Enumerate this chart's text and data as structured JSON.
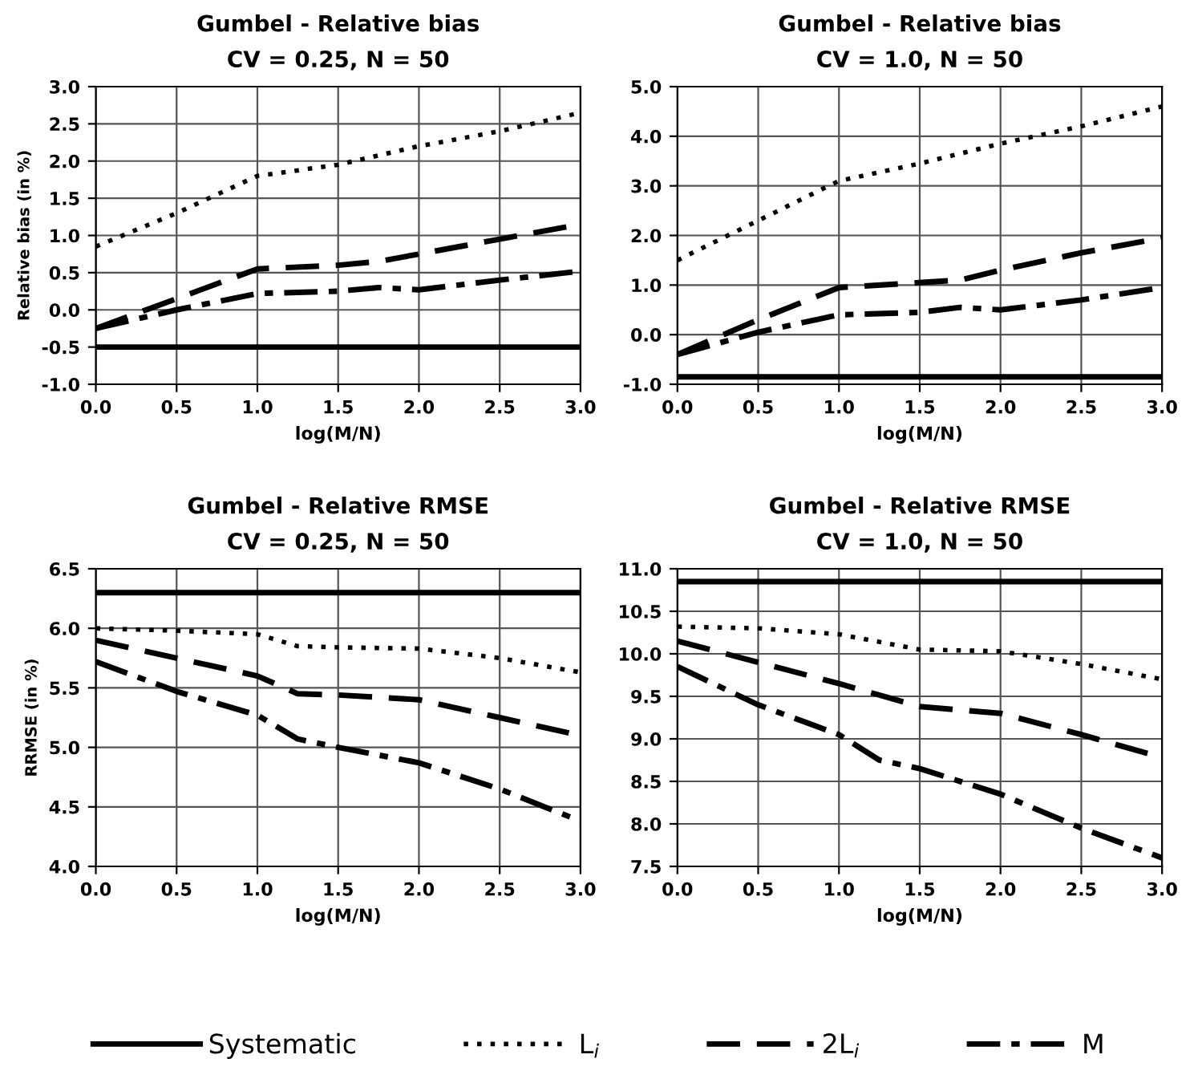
{
  "chart_data": [
    {
      "type": "line",
      "title": "Gumbel - Relative bias",
      "subtitle": "CV = 0.25, N = 50",
      "xlabel": "log(M/N)",
      "ylabel": "Relative bias (in %)",
      "xlim": [
        0,
        3
      ],
      "xticks": [
        {
          "value": 0,
          "label": "0.0"
        },
        {
          "value": 0.5,
          "label": "0.5"
        },
        {
          "value": 1,
          "label": "1.0"
        },
        {
          "value": 1.5,
          "label": "1.5"
        },
        {
          "value": 2,
          "label": "2.0"
        },
        {
          "value": 2.5,
          "label": "2.5"
        },
        {
          "value": 3,
          "label": "3.0"
        }
      ],
      "ylim": [
        -1,
        3
      ],
      "yticks": [
        {
          "value": -1,
          "label": "-1.0"
        },
        {
          "value": -0.5,
          "label": "-0.5"
        },
        {
          "value": 0,
          "label": "0.0"
        },
        {
          "value": 0.5,
          "label": "0.5"
        },
        {
          "value": 1,
          "label": "1.0"
        },
        {
          "value": 1.5,
          "label": "1.5"
        },
        {
          "value": 2,
          "label": "2.0"
        },
        {
          "value": 2.5,
          "label": "2.5"
        },
        {
          "value": 3,
          "label": "3.0"
        }
      ],
      "grid": true,
      "legend": "bottom",
      "marker": "none",
      "series": [
        {
          "name": "Systematic",
          "color": "#000000",
          "line_style": "solid",
          "x": [
            0,
            3
          ],
          "values": [
            -0.5,
            -0.5
          ]
        },
        {
          "name": "L$_{i}$",
          "color": "#000000",
          "line_style": "dotted",
          "x": [
            0,
            0.5,
            1,
            1.5,
            2,
            2.5,
            3
          ],
          "values": [
            0.85,
            1.3,
            1.8,
            1.95,
            2.2,
            2.4,
            2.65
          ]
        },
        {
          "name": "2L$_{i}$",
          "color": "#000000",
          "line_style": "dashed",
          "x": [
            0,
            0.5,
            1,
            1.5,
            1.75,
            2,
            2.5,
            3
          ],
          "values": [
            -0.25,
            0.15,
            0.55,
            0.6,
            0.65,
            0.75,
            0.95,
            1.15
          ]
        },
        {
          "name": "M",
          "color": "#000000",
          "line_style": "dashdot",
          "x": [
            0,
            0.5,
            1,
            1.5,
            1.75,
            2,
            2.5,
            3
          ],
          "values": [
            -0.25,
            0.0,
            0.22,
            0.25,
            0.3,
            0.27,
            0.4,
            0.52
          ]
        }
      ]
    },
    {
      "type": "line",
      "title": "Gumbel - Relative bias",
      "subtitle": "CV = 1.0, N = 50",
      "xlabel": "log(M/N)",
      "xlim": [
        0,
        3
      ],
      "xticks": [
        {
          "value": 0,
          "label": "0.0"
        },
        {
          "value": 0.5,
          "label": "0.5"
        },
        {
          "value": 1,
          "label": "1.0"
        },
        {
          "value": 1.5,
          "label": "1.5"
        },
        {
          "value": 2,
          "label": "2.0"
        },
        {
          "value": 2.5,
          "label": "2.5"
        },
        {
          "value": 3,
          "label": "3.0"
        }
      ],
      "ylim": [
        -1,
        5
      ],
      "yticks": [
        {
          "value": -1,
          "label": "-1.0"
        },
        {
          "value": 0,
          "label": "0.0"
        },
        {
          "value": 1,
          "label": "1.0"
        },
        {
          "value": 2,
          "label": "2.0"
        },
        {
          "value": 3,
          "label": "3.0"
        },
        {
          "value": 4,
          "label": "4.0"
        },
        {
          "value": 5,
          "label": "5.0"
        }
      ],
      "grid": true,
      "marker": "none",
      "series": [
        {
          "color": "#000000",
          "line_style": "solid",
          "x": [
            0,
            3
          ],
          "values": [
            -0.85,
            -0.85
          ]
        },
        {
          "color": "#000000",
          "line_style": "dotted",
          "x": [
            0,
            0.5,
            1,
            1.5,
            2,
            2.5,
            3
          ],
          "values": [
            1.5,
            2.3,
            3.1,
            3.45,
            3.85,
            4.2,
            4.6
          ]
        },
        {
          "color": "#000000",
          "line_style": "dashed",
          "x": [
            0,
            0.5,
            1,
            1.5,
            1.75,
            2,
            2.5,
            3
          ],
          "values": [
            -0.4,
            0.3,
            0.95,
            1.05,
            1.1,
            1.3,
            1.65,
            1.95
          ]
        },
        {
          "color": "#000000",
          "line_style": "dashdot",
          "x": [
            0,
            0.5,
            1,
            1.5,
            1.75,
            2,
            2.5,
            3
          ],
          "values": [
            -0.4,
            0.05,
            0.4,
            0.45,
            0.55,
            0.5,
            0.7,
            0.95
          ]
        }
      ]
    },
    {
      "type": "line",
      "title": "Gumbel - Relative RMSE",
      "subtitle": "CV = 0.25, N = 50",
      "xlabel": "log(M/N)",
      "ylabel": "RRMSE (in %)",
      "xlim": [
        0,
        3
      ],
      "xticks": [
        {
          "value": 0,
          "label": "0.0"
        },
        {
          "value": 0.5,
          "label": "0.5"
        },
        {
          "value": 1,
          "label": "1.0"
        },
        {
          "value": 1.5,
          "label": "1.5"
        },
        {
          "value": 2,
          "label": "2.0"
        },
        {
          "value": 2.5,
          "label": "2.5"
        },
        {
          "value": 3,
          "label": "3.0"
        }
      ],
      "ylim": [
        4,
        6.5
      ],
      "yticks": [
        {
          "value": 4,
          "label": "4.0"
        },
        {
          "value": 4.5,
          "label": "4.5"
        },
        {
          "value": 5,
          "label": "5.0"
        },
        {
          "value": 5.5,
          "label": "5.5"
        },
        {
          "value": 6,
          "label": "6.0"
        },
        {
          "value": 6.5,
          "label": "6.5"
        }
      ],
      "grid": true,
      "marker": "none",
      "series": [
        {
          "color": "#000000",
          "line_style": "solid",
          "x": [
            0,
            3
          ],
          "values": [
            6.3,
            6.3
          ]
        },
        {
          "color": "#000000",
          "line_style": "dotted",
          "x": [
            0,
            0.5,
            1,
            1.25,
            1.5,
            2,
            2.5,
            3
          ],
          "values": [
            6.0,
            5.98,
            5.95,
            5.85,
            5.84,
            5.83,
            5.75,
            5.63
          ]
        },
        {
          "color": "#000000",
          "line_style": "dashed",
          "x": [
            0,
            0.5,
            1,
            1.25,
            1.5,
            2,
            2.5,
            3
          ],
          "values": [
            5.9,
            5.75,
            5.6,
            5.45,
            5.44,
            5.4,
            5.25,
            5.1
          ]
        },
        {
          "color": "#000000",
          "line_style": "dashdot",
          "x": [
            0,
            0.5,
            1,
            1.25,
            1.5,
            2,
            2.5,
            3
          ],
          "values": [
            5.72,
            5.47,
            5.27,
            5.07,
            5.0,
            4.87,
            4.65,
            4.38
          ]
        }
      ]
    },
    {
      "type": "line",
      "title": "Gumbel - Relative RMSE",
      "subtitle": "CV = 1.0, N = 50",
      "xlabel": "log(M/N)",
      "xlim": [
        0,
        3
      ],
      "xticks": [
        {
          "value": 0,
          "label": "0.0"
        },
        {
          "value": 0.5,
          "label": "0.5"
        },
        {
          "value": 1,
          "label": "1.0"
        },
        {
          "value": 1.5,
          "label": "1.5"
        },
        {
          "value": 2,
          "label": "2.0"
        },
        {
          "value": 2.5,
          "label": "2.5"
        },
        {
          "value": 3,
          "label": "3.0"
        }
      ],
      "ylim": [
        7.5,
        11
      ],
      "yticks": [
        {
          "value": 7.5,
          "label": "7.5"
        },
        {
          "value": 8,
          "label": "8.0"
        },
        {
          "value": 8.5,
          "label": "8.5"
        },
        {
          "value": 9,
          "label": "9.0"
        },
        {
          "value": 9.5,
          "label": "9.5"
        },
        {
          "value": 10,
          "label": "10.0"
        },
        {
          "value": 10.5,
          "label": "10.5"
        },
        {
          "value": 11,
          "label": "11.0"
        }
      ],
      "grid": true,
      "marker": "none",
      "series": [
        {
          "color": "#000000",
          "line_style": "solid",
          "x": [
            0,
            3
          ],
          "values": [
            10.85,
            10.85
          ]
        },
        {
          "color": "#000000",
          "line_style": "dotted",
          "x": [
            0,
            0.5,
            1,
            1.5,
            2,
            2.5,
            3
          ],
          "values": [
            10.32,
            10.3,
            10.23,
            10.05,
            10.03,
            9.88,
            9.7
          ]
        },
        {
          "color": "#000000",
          "line_style": "dashed",
          "x": [
            0,
            0.5,
            1,
            1.5,
            2,
            2.5,
            3
          ],
          "values": [
            10.15,
            9.9,
            9.65,
            9.38,
            9.3,
            9.05,
            8.78
          ]
        },
        {
          "color": "#000000",
          "line_style": "dashdot",
          "x": [
            0,
            0.5,
            1,
            1.25,
            1.5,
            2,
            2.5,
            3
          ],
          "values": [
            9.85,
            9.4,
            9.05,
            8.75,
            8.65,
            8.35,
            7.95,
            7.6
          ]
        }
      ]
    }
  ]
}
